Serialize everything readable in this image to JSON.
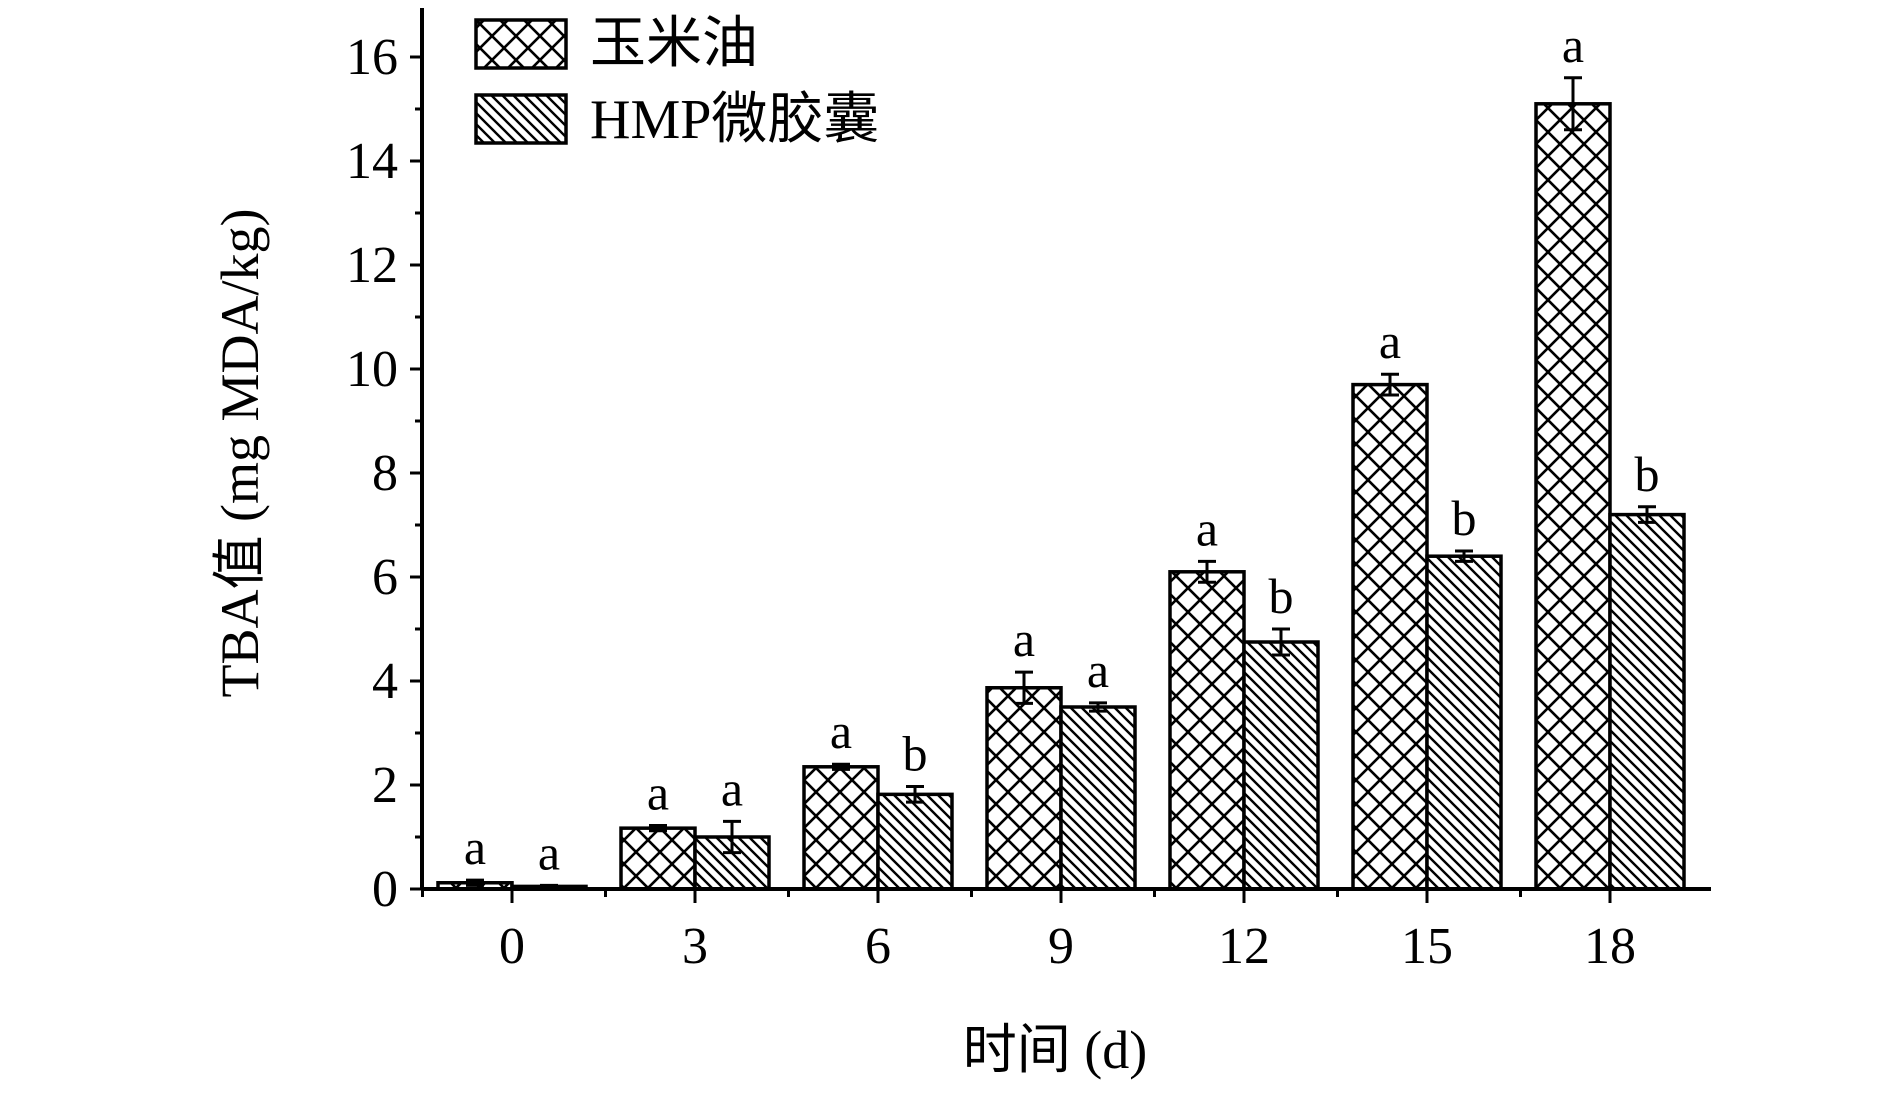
{
  "chart_data": {
    "type": "bar",
    "xlabel": "时间 (d)",
    "ylabel": "TBA值 (mg MDA/kg)",
    "categories": [
      "0",
      "3",
      "6",
      "9",
      "12",
      "15",
      "18"
    ],
    "ylim": [
      0,
      17
    ],
    "yticks": [
      0,
      2,
      4,
      6,
      8,
      10,
      12,
      14,
      16
    ],
    "legend_position": "top-left",
    "series": [
      {
        "name": "玉米油",
        "pattern": "crosshatch",
        "values": [
          0.12,
          1.17,
          2.35,
          3.87,
          6.1,
          9.7,
          15.1
        ],
        "errors": [
          0.05,
          0.05,
          0.05,
          0.3,
          0.2,
          0.2,
          0.5
        ],
        "labels": [
          "a",
          "a",
          "a",
          "a",
          "a",
          "a",
          "a"
        ]
      },
      {
        "name": "HMP微胶囊",
        "pattern": "diagonal",
        "values": [
          0.05,
          1.0,
          1.82,
          3.5,
          4.75,
          6.4,
          7.2
        ],
        "errors": [
          0.02,
          0.3,
          0.15,
          0.08,
          0.25,
          0.1,
          0.15
        ],
        "labels": [
          "a",
          "a",
          "b",
          "a",
          "b",
          "b",
          "b"
        ]
      }
    ],
    "colors": {
      "bar_fill": "#ffffff",
      "stroke": "#000000"
    }
  }
}
